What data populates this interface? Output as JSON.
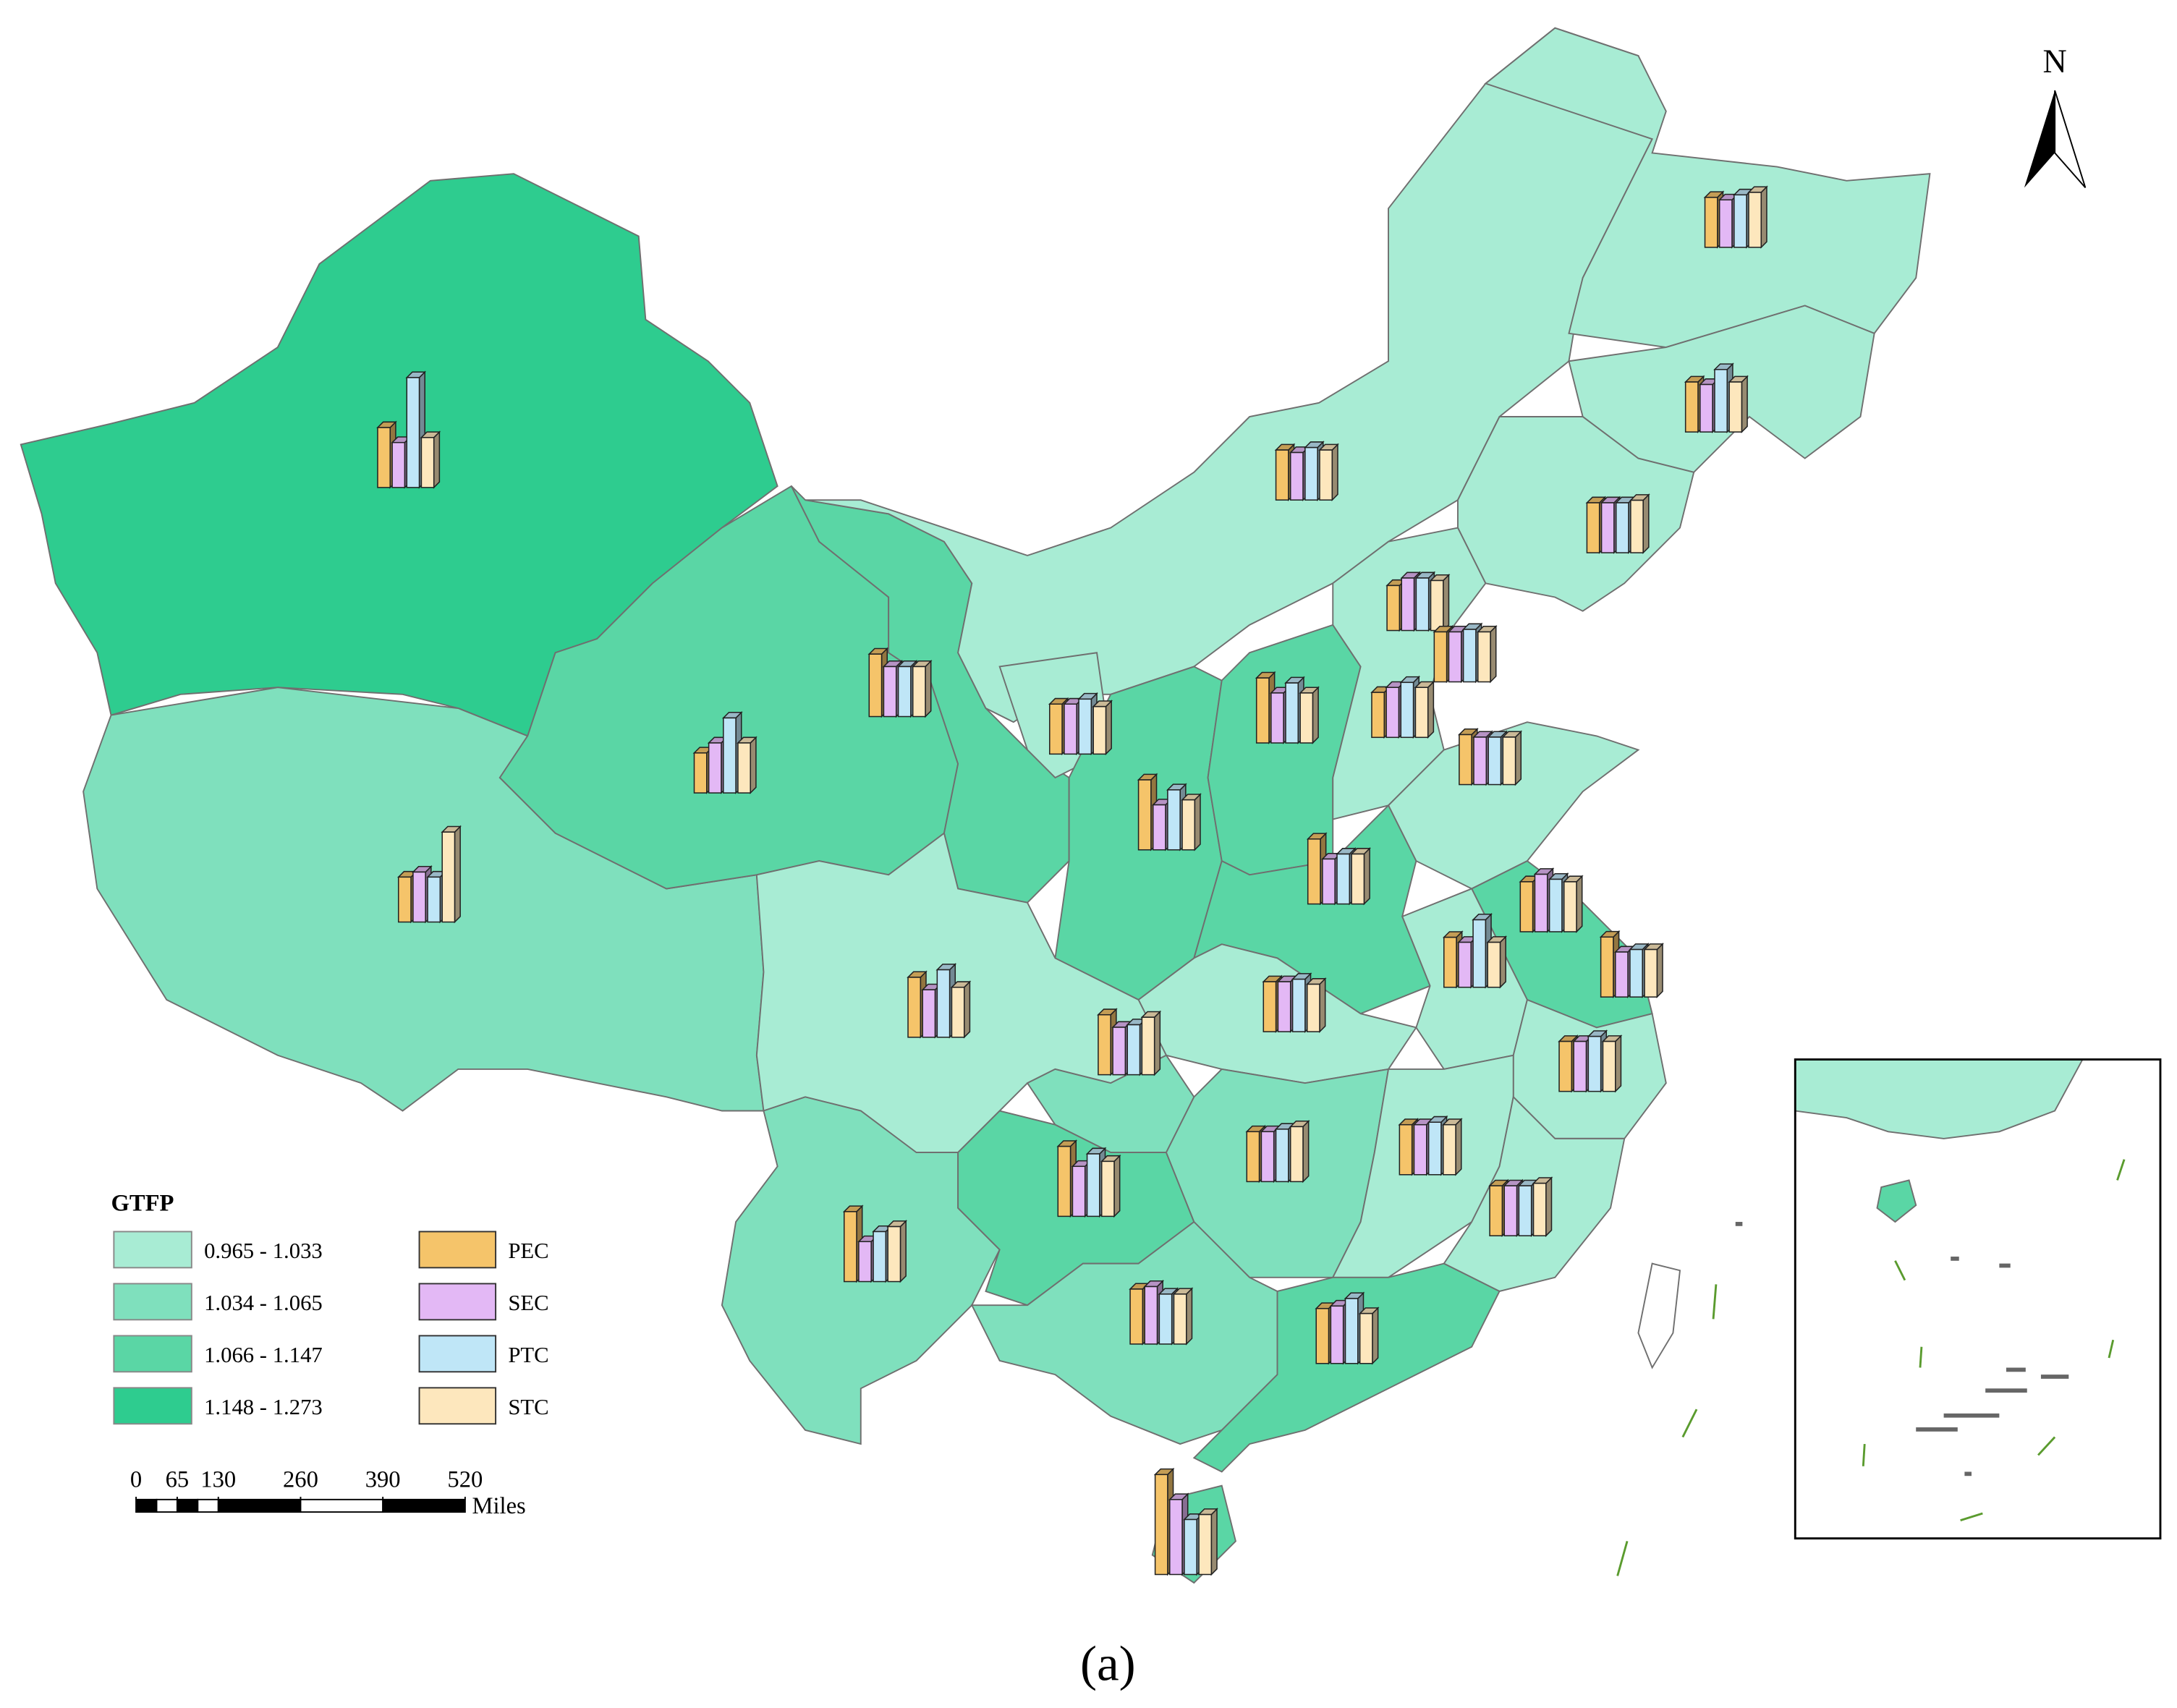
{
  "north_label": "N",
  "caption": "(a)",
  "legend": {
    "title": "GTFP",
    "classes": [
      {
        "label": "0.965 - 1.033",
        "color": "#a8ecd4"
      },
      {
        "label": "1.034 - 1.065",
        "color": "#7fe0bd"
      },
      {
        "label": "1.066 - 1.147",
        "color": "#5ad6a5"
      },
      {
        "label": "1.148 - 1.273",
        "color": "#2ecc8f"
      }
    ],
    "series": [
      {
        "name": "PEC",
        "color": "#f5c46a",
        "values": [
          1.0,
          1.0,
          1.0,
          1.0,
          1.2,
          1.25,
          0.8,
          0.9,
          1.0,
          0.9,
          1.0,
          0.9,
          1.3,
          1.0,
          1.4,
          1.3,
          1.0,
          1.2,
          1.0,
          1.0,
          1.2,
          1.2,
          1.0,
          1.4,
          1.0,
          1.0,
          1.0,
          1.4,
          1.1,
          1.1,
          2.0
        ]
      },
      {
        "name": "SEC",
        "color": "#e3b8f5",
        "values": [
          0.95,
          0.95,
          1.0,
          0.95,
          0.9,
          1.0,
          1.0,
          1.0,
          1.0,
          1.05,
          1.0,
          1.0,
          1.0,
          0.95,
          0.9,
          0.9,
          1.15,
          0.9,
          0.9,
          1.0,
          0.95,
          0.95,
          1.0,
          1.0,
          1.0,
          1.0,
          1.0,
          0.8,
          1.15,
          1.15,
          1.5
        ]
      },
      {
        "name": "PTC",
        "color": "#bfe6f7",
        "values": [
          1.05,
          1.25,
          1.0,
          1.05,
          2.2,
          1.0,
          1.5,
          0.9,
          1.1,
          1.05,
          1.05,
          1.1,
          1.2,
          0.95,
          1.2,
          1.0,
          1.05,
          0.95,
          1.35,
          1.05,
          1.0,
          1.35,
          1.1,
          1.25,
          1.05,
          1.05,
          1.0,
          1.0,
          1.0,
          1.3,
          1.1
        ]
      },
      {
        "name": "STC",
        "color": "#fde7bd",
        "values": [
          1.1,
          1.0,
          1.05,
          1.0,
          1.0,
          1.0,
          1.0,
          1.8,
          0.95,
          1.0,
          1.0,
          1.0,
          1.0,
          0.95,
          1.0,
          1.0,
          1.0,
          0.95,
          0.9,
          0.95,
          1.15,
          1.0,
          1.0,
          1.1,
          1.1,
          1.0,
          1.05,
          1.1,
          1.0,
          1.0,
          1.2
        ]
      }
    ]
  },
  "scale_bar": {
    "ticks": [
      0,
      65,
      130,
      260,
      390,
      520
    ],
    "unit": "Miles"
  }
}
